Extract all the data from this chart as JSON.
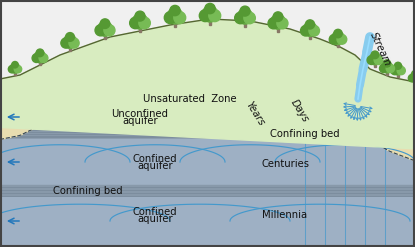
{
  "fig_width": 4.15,
  "fig_height": 2.47,
  "dpi": 100,
  "bg_color": "#f0f0f0",
  "border_color": "#444444",
  "hill_fill": "#d8ecc0",
  "hill_edge": "#556633",
  "unsaturated_fill": "#e8ddb0",
  "unconfined_fill": "#b0c0d8",
  "confining_fill": "#8899aa",
  "confined1_fill": "#9eb0c4",
  "confining2_fill": "#8899aa",
  "confined2_fill": "#9eb0c4",
  "stream_color": "#88ccee",
  "flow_line_color": "#4499cc",
  "arrow_color": "#2277bb",
  "text_color": "#111111",
  "stripe_color": "#6677889",
  "tree_trunk": "#776655",
  "tree_canopy": "#559944",
  "tree_canopy2": "#77bb55",
  "labels": {
    "unsaturated": "Unsaturated  Zone",
    "unconfined1": "Unconfined",
    "unconfined2": "aquifer",
    "confining_bed_top": "Confining bed",
    "confined_mid1": "Confined",
    "confined_mid2": "aquifer",
    "confining_bed_bot": "Confining bed",
    "confined_bot1": "Confined",
    "confined_bot2": "aquifer",
    "centuries": "Centuries",
    "millennia": "Millennia",
    "years": "Years",
    "days": "Days",
    "stream": "Stream"
  }
}
